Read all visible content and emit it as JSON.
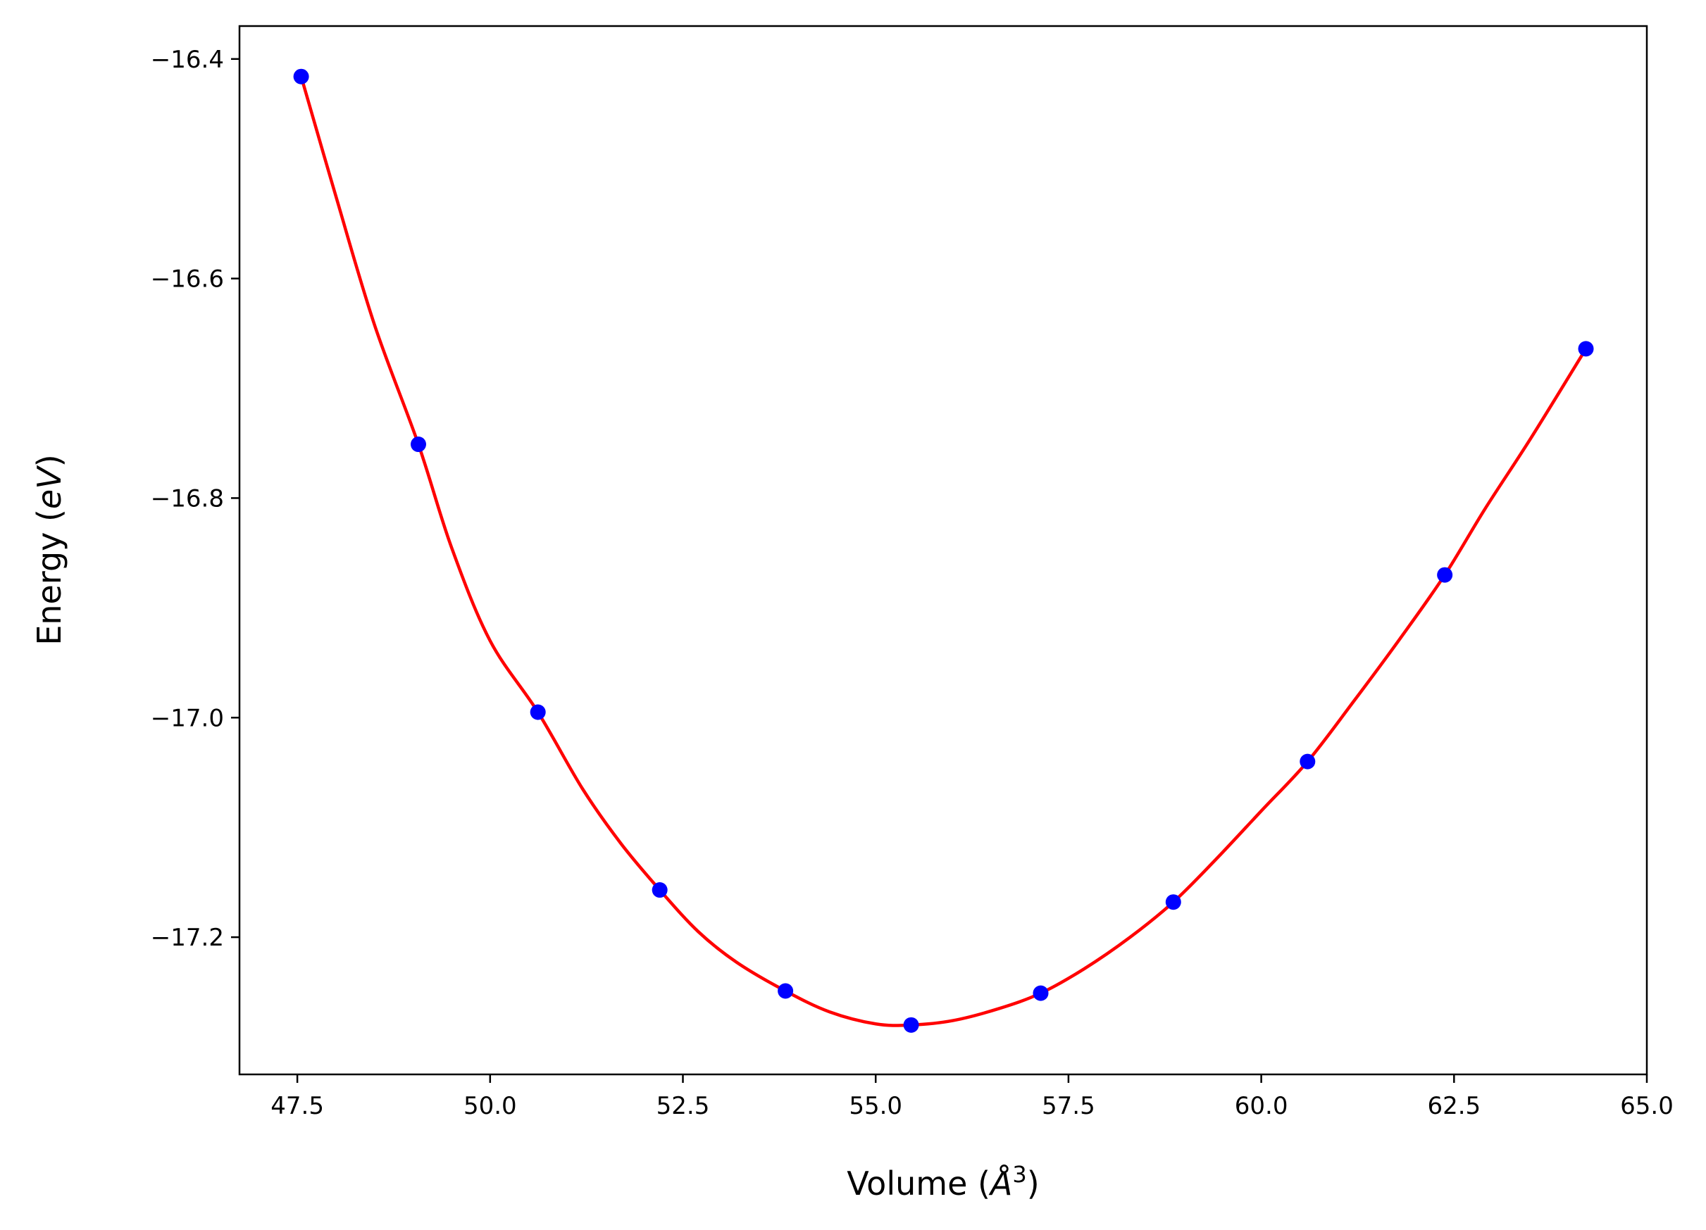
{
  "chart_data": {
    "type": "line",
    "xlabel": "Volume (",
    "xlabel_unit": "Å",
    "xlabel_exp": "3",
    "xlabel_close": ")",
    "ylabel": "Energy (",
    "ylabel_unit": "eV",
    "ylabel_close": ")",
    "xlim": [
      46.75,
      65.0
    ],
    "ylim": [
      -17.325,
      -16.37
    ],
    "xticks": [
      47.5,
      50.0,
      52.5,
      55.0,
      57.5,
      60.0,
      62.5,
      65.0
    ],
    "xtick_labels": [
      "47.5",
      "50.0",
      "52.5",
      "55.0",
      "57.5",
      "60.0",
      "62.5",
      "65.0"
    ],
    "yticks": [
      -16.4,
      -16.6,
      -16.8,
      -17.0,
      -17.2
    ],
    "ytick_labels": [
      "−16.4",
      "−16.6",
      "−16.8",
      "−17.0",
      "−17.2"
    ],
    "grid": false,
    "series": [
      {
        "kind": "scatter",
        "color": "#0000ff",
        "x": [
          47.55,
          49.07,
          50.62,
          52.2,
          53.83,
          55.46,
          57.14,
          58.86,
          60.6,
          62.38,
          64.21
        ],
        "y": [
          -16.416,
          -16.751,
          -16.995,
          -17.157,
          -17.249,
          -17.28,
          -17.251,
          -17.168,
          -17.04,
          -16.87,
          -16.664
        ]
      },
      {
        "kind": "line",
        "color": "#ff0000",
        "x": [
          47.55,
          48.0,
          48.5,
          49.07,
          49.5,
          50.0,
          50.62,
          51.2,
          51.7,
          52.2,
          52.7,
          53.2,
          53.83,
          54.4,
          55.0,
          55.46,
          56.0,
          56.6,
          57.14,
          57.7,
          58.3,
          58.86,
          59.4,
          60.0,
          60.6,
          61.2,
          61.8,
          62.38,
          62.9,
          63.5,
          64.21
        ],
        "y": [
          -16.416,
          -16.525,
          -16.642,
          -16.751,
          -16.845,
          -16.93,
          -16.995,
          -17.065,
          -17.115,
          -17.157,
          -17.195,
          -17.223,
          -17.249,
          -17.268,
          -17.279,
          -17.28,
          -17.276,
          -17.265,
          -17.251,
          -17.229,
          -17.2,
          -17.168,
          -17.13,
          -17.085,
          -17.04,
          -16.985,
          -16.928,
          -16.87,
          -16.81,
          -16.745,
          -16.664
        ]
      }
    ]
  }
}
